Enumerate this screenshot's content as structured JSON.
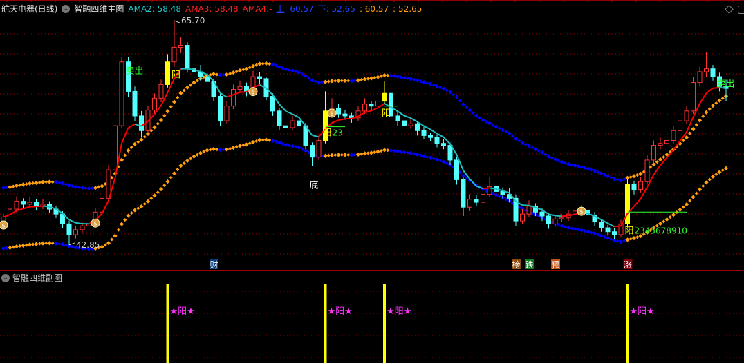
{
  "header": {
    "stock": "航天电器(日线)",
    "indicator": "智融四维主图",
    "ama2_label": "AMA2:",
    "ama2": "58.48",
    "ama3_label": "AMA3:",
    "ama3": "58.48",
    "ama4_label": "AMA4:",
    "ama4": "-",
    "up_label": "上",
    "up": ": 60.57",
    "down_label": "下",
    "down": ": 52.65",
    "extra1": ": 60.57",
    "extra2": ": 52.65"
  },
  "sub_panel": {
    "title": "智融四维副图"
  },
  "colors": {
    "up": "#ff3232",
    "down": "#54ffff",
    "signal": "#ffff00",
    "ma_up": "#ff0000",
    "ma_down": "#20c0c0",
    "band_up": "#ffa010",
    "band_down": "#0000ff",
    "grid": "#a00000",
    "magenta": "#ff33ff",
    "green": "#30ff30"
  },
  "chart_data": {
    "type": "candlestick",
    "ylim": [
      42.0,
      66.5
    ],
    "grid": true,
    "high_label": "65.70",
    "low_label": "42.85",
    "candles": [
      [
        45.0,
        46.0,
        44.6,
        45.7
      ],
      [
        45.7,
        47.0,
        45.3,
        46.5
      ],
      [
        46.5,
        47.8,
        46.1,
        47.3
      ],
      [
        47.3,
        47.6,
        46.6,
        47.0
      ],
      [
        47.0,
        47.7,
        46.7,
        47.2
      ],
      [
        47.2,
        47.5,
        46.4,
        46.8
      ],
      [
        46.8,
        47.5,
        46.5,
        47.0
      ],
      [
        47.0,
        47.3,
        46.1,
        46.5
      ],
      [
        46.5,
        46.8,
        45.6,
        46.0
      ],
      [
        46.0,
        46.3,
        44.6,
        45.0
      ],
      [
        45.0,
        45.3,
        42.85,
        43.9
      ],
      [
        43.9,
        44.8,
        43.5,
        44.4
      ],
      [
        44.4,
        45.2,
        44.0,
        44.8
      ],
      [
        44.8,
        45.5,
        44.3,
        45.0
      ],
      [
        45.0,
        46.6,
        44.8,
        46.2
      ],
      [
        46.2,
        48.0,
        45.9,
        47.6
      ],
      [
        47.6,
        51.0,
        47.3,
        50.5
      ],
      [
        50.5,
        55.5,
        50.2,
        55.0
      ],
      [
        55.0,
        62.0,
        54.8,
        61.5
      ],
      [
        61.5,
        62.0,
        57.9,
        58.5
      ],
      [
        58.5,
        59.0,
        55.5,
        56.0
      ],
      [
        56.0,
        56.5,
        53.8,
        54.5
      ],
      [
        54.5,
        57.0,
        54.2,
        56.6
      ],
      [
        56.6,
        58.3,
        56.2,
        57.8
      ],
      [
        57.8,
        59.7,
        57.4,
        59.2
      ],
      [
        59.2,
        62.3,
        58.9,
        61.5
      ],
      [
        61.5,
        65.7,
        61.0,
        63.0
      ],
      [
        63.0,
        64.0,
        62.4,
        63.2
      ],
      [
        63.2,
        63.5,
        60.4,
        60.8
      ],
      [
        60.8,
        61.5,
        60.0,
        60.5
      ],
      [
        60.5,
        61.2,
        59.6,
        60.0
      ],
      [
        60.0,
        60.4,
        59.0,
        59.5
      ],
      [
        59.5,
        59.8,
        57.5,
        58.0
      ],
      [
        58.0,
        58.3,
        55.0,
        55.5
      ],
      [
        55.5,
        57.5,
        55.2,
        57.0
      ],
      [
        57.0,
        59.2,
        56.7,
        58.7
      ],
      [
        58.7,
        59.6,
        58.3,
        59.0
      ],
      [
        59.0,
        59.4,
        58.0,
        58.5
      ],
      [
        58.5,
        60.6,
        58.2,
        60.0
      ],
      [
        60.0,
        60.5,
        59.3,
        59.8
      ],
      [
        59.8,
        60.0,
        57.6,
        58.0
      ],
      [
        58.0,
        58.3,
        56.0,
        56.5
      ],
      [
        56.5,
        56.8,
        54.6,
        55.0
      ],
      [
        55.0,
        55.4,
        54.2,
        54.8
      ],
      [
        54.8,
        56.0,
        54.5,
        55.5
      ],
      [
        55.5,
        55.9,
        54.6,
        55.0
      ],
      [
        55.0,
        55.3,
        52.6,
        53.0
      ],
      [
        53.0,
        53.3,
        50.9,
        51.8
      ],
      [
        51.8,
        54.0,
        51.5,
        53.5
      ],
      [
        53.5,
        58.5,
        53.2,
        56.5
      ],
      [
        56.5,
        57.8,
        56.0,
        56.8
      ],
      [
        56.8,
        57.2,
        55.8,
        56.2
      ],
      [
        56.2,
        56.6,
        55.6,
        56.0
      ],
      [
        56.0,
        56.3,
        55.3,
        55.8
      ],
      [
        55.8,
        57.0,
        55.5,
        56.5
      ],
      [
        56.5,
        57.8,
        56.2,
        57.2
      ],
      [
        57.2,
        57.5,
        56.6,
        57.0
      ],
      [
        57.0,
        58.0,
        56.7,
        57.5
      ],
      [
        57.5,
        59.5,
        57.2,
        58.3
      ],
      [
        58.3,
        58.6,
        55.6,
        56.0
      ],
      [
        56.0,
        56.4,
        55.0,
        55.5
      ],
      [
        55.5,
        55.8,
        54.6,
        55.0
      ],
      [
        55.0,
        55.8,
        54.7,
        55.2
      ],
      [
        55.2,
        55.5,
        54.0,
        54.5
      ],
      [
        54.5,
        54.9,
        53.6,
        54.0
      ],
      [
        54.0,
        54.3,
        53.4,
        53.8
      ],
      [
        53.8,
        54.1,
        52.8,
        53.2
      ],
      [
        53.2,
        53.6,
        52.6,
        53.0
      ],
      [
        53.0,
        53.3,
        51.0,
        51.5
      ],
      [
        51.5,
        51.8,
        49.0,
        49.5
      ],
      [
        49.5,
        49.8,
        45.8,
        46.7
      ],
      [
        46.7,
        48.0,
        46.3,
        47.5
      ],
      [
        47.5,
        47.9,
        46.8,
        47.2
      ],
      [
        47.2,
        48.5,
        46.9,
        48.0
      ],
      [
        48.0,
        49.8,
        47.7,
        48.8
      ],
      [
        48.8,
        49.2,
        47.9,
        48.3
      ],
      [
        48.3,
        48.7,
        47.6,
        48.0
      ],
      [
        48.0,
        48.6,
        47.2,
        47.6
      ],
      [
        47.6,
        48.0,
        44.8,
        45.3
      ],
      [
        45.3,
        46.5,
        45.0,
        46.0
      ],
      [
        46.0,
        47.4,
        45.7,
        46.8
      ],
      [
        46.8,
        47.1,
        45.8,
        46.2
      ],
      [
        46.2,
        46.6,
        45.3,
        45.8
      ],
      [
        45.8,
        46.1,
        44.5,
        45.0
      ],
      [
        45.0,
        45.9,
        44.7,
        45.5
      ],
      [
        45.5,
        46.0,
        45.2,
        45.6
      ],
      [
        45.6,
        46.4,
        45.3,
        46.0
      ],
      [
        46.0,
        46.7,
        45.7,
        46.3
      ],
      [
        46.3,
        46.9,
        46.0,
        46.4
      ],
      [
        46.4,
        46.7,
        45.5,
        45.9
      ],
      [
        45.9,
        46.2,
        44.8,
        45.2
      ],
      [
        45.2,
        45.5,
        44.2,
        44.6
      ],
      [
        44.6,
        44.9,
        43.8,
        44.2
      ],
      [
        44.2,
        44.6,
        43.4,
        43.9
      ],
      [
        43.9,
        45.4,
        43.6,
        45.0
      ],
      [
        45.0,
        49.6,
        44.8,
        49.0
      ],
      [
        49.0,
        49.4,
        48.0,
        48.5
      ],
      [
        48.5,
        49.8,
        48.2,
        49.3
      ],
      [
        49.3,
        52.0,
        49.0,
        51.5
      ],
      [
        51.5,
        53.5,
        51.2,
        53.0
      ],
      [
        53.0,
        53.8,
        52.6,
        53.2
      ],
      [
        53.2,
        54.0,
        52.8,
        53.5
      ],
      [
        53.5,
        55.0,
        53.2,
        54.5
      ],
      [
        54.5,
        56.0,
        54.2,
        55.5
      ],
      [
        55.5,
        57.0,
        55.2,
        56.5
      ],
      [
        56.5,
        60.0,
        56.2,
        59.4
      ],
      [
        59.4,
        61.0,
        59.0,
        60.5
      ],
      [
        60.5,
        62.5,
        60.0,
        60.8
      ],
      [
        60.8,
        61.2,
        59.6,
        60.0
      ],
      [
        60.0,
        60.4,
        58.5,
        59.0
      ],
      [
        59.0,
        59.7,
        57.5,
        58.8
      ]
    ],
    "high_index": 26,
    "low_index": 10,
    "signals": [
      25,
      49,
      58,
      95
    ],
    "signal_label": "★阳★",
    "money_bags": [
      0,
      14,
      38,
      50,
      88
    ],
    "annotations": [
      {
        "index": 19,
        "text": "卖出",
        "color": "#30ff30",
        "price": 60.3
      },
      {
        "index": 109,
        "text": "卖出",
        "color": "#30ff30",
        "price": 59.0
      },
      {
        "index": 26,
        "text": "阳",
        "color": "#ffff00",
        "price": 59.9
      },
      {
        "index": 58,
        "text": "阳",
        "color": "#ffff00",
        "price": 56.0
      },
      {
        "index": 49,
        "text": "阳",
        "color": "#ffff00",
        "price": 54.0,
        "suffix": "23"
      },
      {
        "index": 95,
        "text": "阳",
        "color": "#ffff00",
        "price": 44.0,
        "suffix": "2345678910"
      },
      {
        "index": 47,
        "text": "底",
        "color": "#ffffff",
        "price": 48.6
      }
    ],
    "bottom_tags": [
      {
        "index": 32,
        "text": "财",
        "bg": "#0a3a78"
      },
      {
        "index": 78,
        "text": "榜",
        "bg": "#8a4a10"
      },
      {
        "index": 80,
        "text": "跌",
        "bg": "#0a7a20"
      },
      {
        "index": 84,
        "text": "预",
        "bg": "#c05010"
      },
      {
        "index": 95,
        "text": "涨",
        "bg": "#800010"
      }
    ]
  }
}
